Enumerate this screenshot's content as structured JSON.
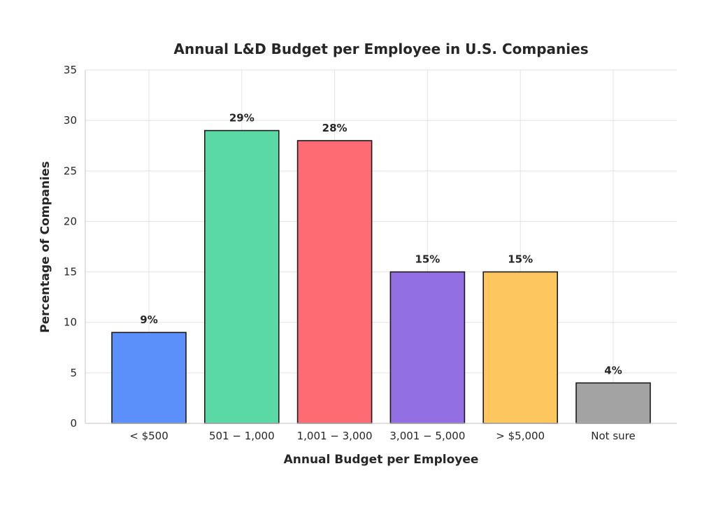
{
  "chart_data": {
    "type": "bar",
    "title": "Annual L&D Budget per Employee in U.S. Companies",
    "xlabel": "Annual Budget per Employee",
    "ylabel": "Percentage of Companies",
    "categories": [
      "< $500",
      "501 − 1,000",
      "1,001 − 3,000",
      "3,001 − 5,000",
      "> $5,000",
      "Not sure"
    ],
    "values": [
      9,
      29,
      28,
      15,
      15,
      4
    ],
    "value_labels": [
      "9%",
      "29%",
      "28%",
      "15%",
      "15%",
      "4%"
    ],
    "colors": [
      "#5b8ff9",
      "#5ad8a6",
      "#ff6b72",
      "#9270e3",
      "#fdc65f",
      "#a3a3a3"
    ],
    "ylim": [
      0,
      35
    ],
    "yticks": [
      0,
      5,
      10,
      15,
      20,
      25,
      30,
      35
    ],
    "grid": true
  }
}
